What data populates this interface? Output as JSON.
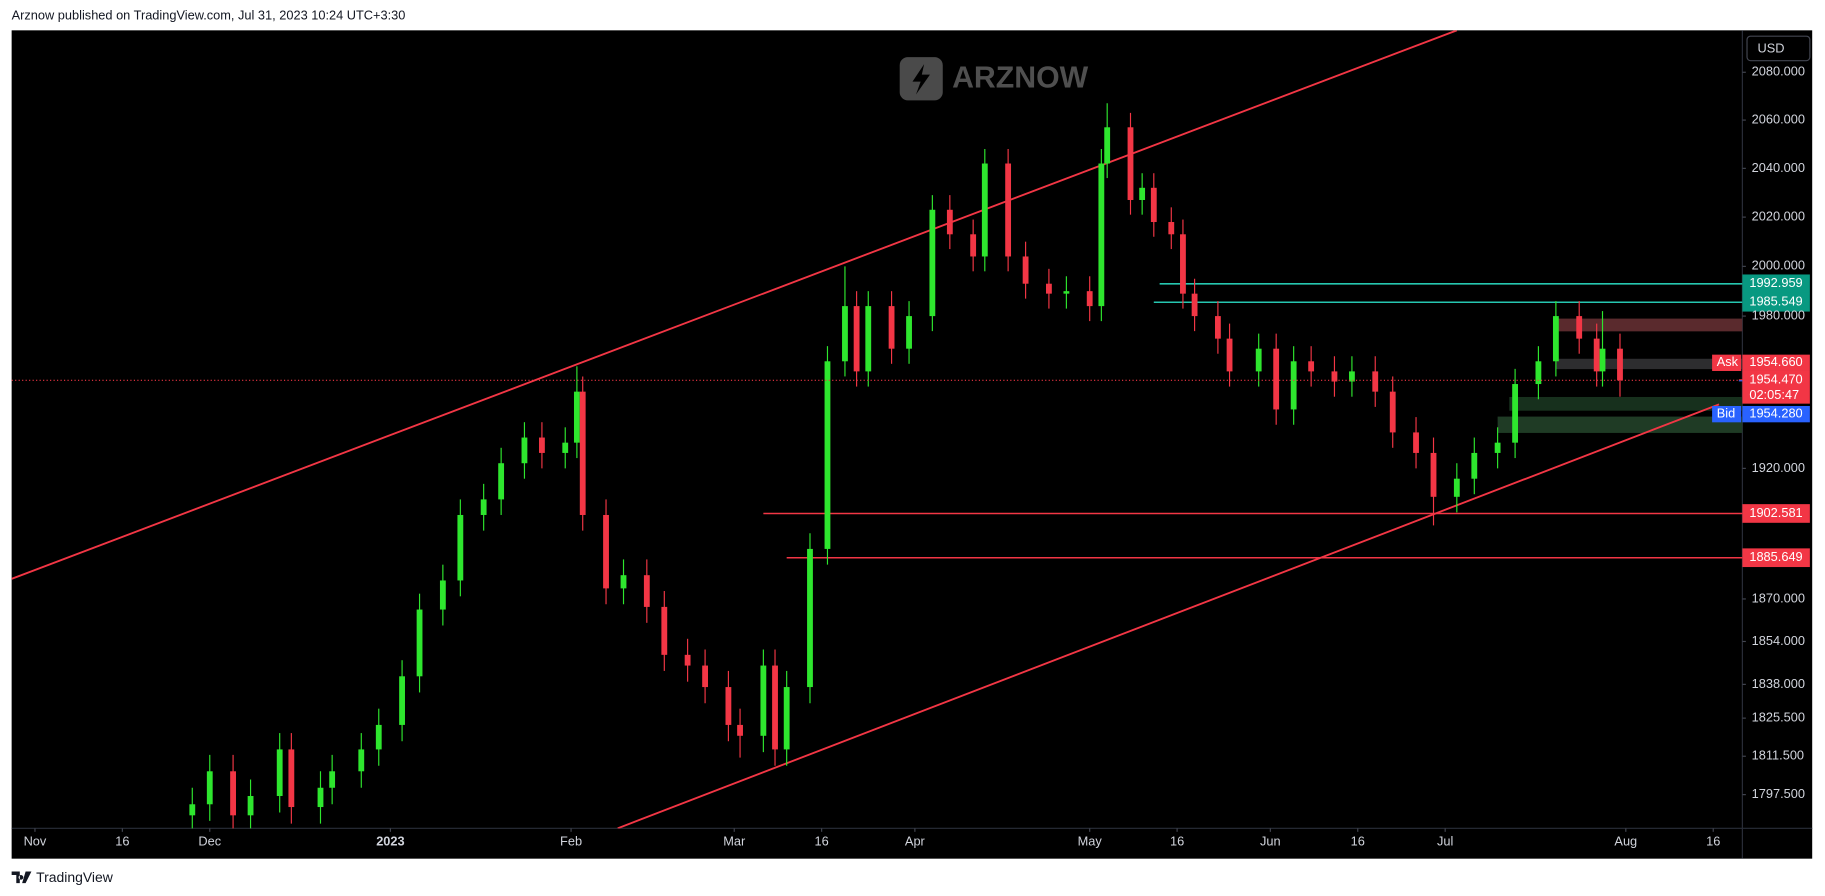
{
  "header": "Arznow published on TradingView.com, Jul 31, 2023 10:24 UTC+3:30",
  "footer": "TradingView",
  "watermark": "ARZNOW",
  "currency": "USD",
  "chart_data": {
    "type": "candlestick",
    "up_color": "#2ee62e",
    "down_color": "#f23645",
    "x": [
      "2022-11-28",
      "2022-12-01",
      "2022-12-05",
      "2022-12-08",
      "2022-12-13",
      "2022-12-15",
      "2022-12-20",
      "2022-12-22",
      "2022-12-27",
      "2022-12-30",
      "2023-01-03",
      "2023-01-06",
      "2023-01-10",
      "2023-01-13",
      "2023-01-17",
      "2023-01-20",
      "2023-01-24",
      "2023-01-27",
      "2023-01-31",
      "2023-02-02",
      "2023-02-03",
      "2023-02-07",
      "2023-02-10",
      "2023-02-14",
      "2023-02-17",
      "2023-02-21",
      "2023-02-24",
      "2023-02-28",
      "2023-03-02",
      "2023-03-06",
      "2023-03-08",
      "2023-03-10",
      "2023-03-14",
      "2023-03-17",
      "2023-03-20",
      "2023-03-22",
      "2023-03-24",
      "2023-03-28",
      "2023-03-31",
      "2023-04-04",
      "2023-04-07",
      "2023-04-11",
      "2023-04-13",
      "2023-04-17",
      "2023-04-20",
      "2023-04-24",
      "2023-04-27",
      "2023-05-01",
      "2023-05-03",
      "2023-05-04",
      "2023-05-08",
      "2023-05-10",
      "2023-05-12",
      "2023-05-15",
      "2023-05-17",
      "2023-05-19",
      "2023-05-23",
      "2023-05-25",
      "2023-05-30",
      "2023-06-02",
      "2023-06-05",
      "2023-06-08",
      "2023-06-12",
      "2023-06-15",
      "2023-06-19",
      "2023-06-22",
      "2023-06-26",
      "2023-06-29",
      "2023-07-03",
      "2023-07-06",
      "2023-07-10",
      "2023-07-13",
      "2023-07-17",
      "2023-07-20",
      "2023-07-24",
      "2023-07-27",
      "2023-07-28",
      "2023-07-31"
    ],
    "open": [
      1790,
      1794,
      1806,
      1790,
      1797,
      1814,
      1793,
      1800,
      1806,
      1814,
      1823,
      1841,
      1866,
      1877,
      1902,
      1908,
      1922,
      1932,
      1926,
      1930,
      1950,
      1902,
      1874,
      1879,
      1867,
      1849,
      1845,
      1837,
      1823,
      1819,
      1845,
      1814,
      1837,
      1889,
      1962,
      1984,
      1958,
      1984,
      1967,
      1980,
      2023,
      2013,
      2004,
      2042,
      2004,
      1993,
      1989,
      1990,
      1984,
      2042,
      2057,
      2027,
      2032,
      2018,
      2013,
      1989,
      1980,
      1971,
      1958,
      1967,
      1943,
      1962,
      1958,
      1954,
      1958,
      1950,
      1934,
      1926,
      1909,
      1916,
      1926,
      1930,
      1953,
      1962,
      1980,
      1971,
      1958,
      1967
    ],
    "high": [
      1800,
      1812,
      1812,
      1803,
      1820,
      1820,
      1806,
      1812,
      1820,
      1829,
      1847,
      1872,
      1883,
      1908,
      1914,
      1928,
      1938,
      1938,
      1936,
      1960,
      1956,
      1908,
      1885,
      1885,
      1873,
      1855,
      1851,
      1843,
      1829,
      1851,
      1851,
      1843,
      1895,
      1968,
      2000,
      1990,
      1990,
      1990,
      1986,
      2029,
      2029,
      2019,
      2048,
      2048,
      2010,
      1999,
      1996,
      1996,
      2048,
      2067,
      2063,
      2038,
      2038,
      2024,
      2019,
      1995,
      1986,
      1977,
      1973,
      1973,
      1968,
      1968,
      1964,
      1964,
      1964,
      1956,
      1940,
      1932,
      1922,
      1932,
      1936,
      1959,
      1968,
      1986,
      1986,
      1977,
      1982,
      1973
    ],
    "low": [
      1784,
      1788,
      1784,
      1784,
      1791,
      1787,
      1787,
      1794,
      1800,
      1808,
      1817,
      1835,
      1860,
      1871,
      1896,
      1902,
      1916,
      1920,
      1920,
      1924,
      1896,
      1868,
      1868,
      1861,
      1843,
      1839,
      1831,
      1817,
      1811,
      1813,
      1808,
      1808,
      1831,
      1883,
      1956,
      1952,
      1952,
      1961,
      1961,
      1974,
      2007,
      1998,
      1998,
      1998,
      1987,
      1983,
      1983,
      1978,
      1978,
      2036,
      2021,
      2021,
      2012,
      2007,
      1983,
      1974,
      1965,
      1952,
      1952,
      1937,
      1937,
      1952,
      1948,
      1948,
      1944,
      1928,
      1920,
      1898,
      1903,
      1910,
      1920,
      1924,
      1947,
      1956,
      1965,
      1952,
      1952,
      1948
    ],
    "close": [
      1794,
      1806,
      1790,
      1797,
      1814,
      1793,
      1800,
      1806,
      1814,
      1823,
      1841,
      1866,
      1877,
      1902,
      1908,
      1922,
      1932,
      1926,
      1930,
      1950,
      1902,
      1874,
      1879,
      1867,
      1849,
      1845,
      1837,
      1823,
      1819,
      1845,
      1814,
      1837,
      1889,
      1962,
      1984,
      1958,
      1984,
      1967,
      1980,
      2023,
      2013,
      2004,
      2042,
      2004,
      1993,
      1989,
      1990,
      1984,
      2042,
      2057,
      2027,
      2032,
      2018,
      2013,
      1989,
      1980,
      1971,
      1958,
      1967,
      1943,
      1962,
      1958,
      1954,
      1958,
      1950,
      1934,
      1926,
      1909,
      1916,
      1926,
      1930,
      1953,
      1962,
      1980,
      1971,
      1958,
      1967,
      1954.47
    ],
    "xlim": [
      "2022-10-28",
      "2023-08-21"
    ],
    "xticks": [
      {
        "value": "2022-11-01",
        "label": "Nov"
      },
      {
        "value": "2022-11-16",
        "label": "16"
      },
      {
        "value": "2022-12-01",
        "label": "Dec"
      },
      {
        "value": "2023-01-01",
        "label": "2023"
      },
      {
        "value": "2023-02-01",
        "label": "Feb"
      },
      {
        "value": "2023-03-01",
        "label": "Mar"
      },
      {
        "value": "2023-03-16",
        "label": "16"
      },
      {
        "value": "2023-04-01",
        "label": "Apr"
      },
      {
        "value": "2023-05-01",
        "label": "May"
      },
      {
        "value": "2023-05-16",
        "label": "16"
      },
      {
        "value": "2023-06-01",
        "label": "Jun"
      },
      {
        "value": "2023-06-16",
        "label": "16"
      },
      {
        "value": "2023-07-01",
        "label": "Jul"
      },
      {
        "value": "2023-08-01",
        "label": "Aug"
      },
      {
        "value": "2023-08-16",
        "label": "16"
      }
    ],
    "ylim": [
      1785.3,
      2097.7
    ],
    "log_scale": true,
    "grid": false,
    "yticks": [
      {
        "value": 2080,
        "label": "2080.000"
      },
      {
        "value": 2060,
        "label": "2060.000"
      },
      {
        "value": 2040,
        "label": "2040.000"
      },
      {
        "value": 2020,
        "label": "2020.000"
      },
      {
        "value": 2000,
        "label": "2000.000"
      },
      {
        "value": 1980,
        "label": "1980.000"
      },
      {
        "value": 1920,
        "label": "1920.000"
      },
      {
        "value": 1870,
        "label": "1870.000"
      },
      {
        "value": 1854,
        "label": "1854.000"
      },
      {
        "value": 1838,
        "label": "1838.000"
      },
      {
        "value": 1825.5,
        "label": "1825.500"
      },
      {
        "value": 1811.5,
        "label": "1811.500"
      },
      {
        "value": 1797.5,
        "label": "1797.500"
      }
    ],
    "levels": [
      {
        "value": 1992.959,
        "start": "2023-05-13",
        "color": "#089981",
        "line_color": "#26c6b0"
      },
      {
        "value": 1985.549,
        "start": "2023-05-12",
        "color": "#089981",
        "line_color": "#26c6b0"
      },
      {
        "value": 1902.581,
        "start": "2023-03-06",
        "color": "#f23645",
        "line_color": "#f23645"
      },
      {
        "value": 1885.649,
        "start": "2023-03-10",
        "color": "#f23645",
        "line_color": "#f23645"
      }
    ],
    "trendlines": [
      {
        "color": "#f23645",
        "x": [
          "2022-10-28",
          "2023-07-03"
        ],
        "y": [
          1877.6,
          2097.7
        ]
      },
      {
        "color": "#f23645",
        "x": [
          "2023-02-09",
          "2023-08-17"
        ],
        "y": [
          1785.3,
          1945
        ]
      }
    ],
    "zones": [
      {
        "start": "2023-07-20",
        "top": 1979.0,
        "bottom": 1973.9,
        "color": "#5a2a2d"
      },
      {
        "start": "2023-07-20",
        "top": 1963.0,
        "bottom": 1958.9,
        "color": "#2d2d2f"
      },
      {
        "start": "2023-07-12",
        "top": 1947.9,
        "bottom": 1942.5,
        "color": "#17301d"
      },
      {
        "start": "2023-07-10",
        "top": 1940.2,
        "bottom": 1933.8,
        "color": "#1f3b25"
      }
    ],
    "last": {
      "value": 1954.47,
      "label": "1954.470",
      "countdown": "02:05:47",
      "color": "#f23645"
    },
    "ask": {
      "name": "Ask",
      "value": 1954.66,
      "label": "1954.660",
      "color": "#f23645"
    },
    "bid": {
      "name": "Bid",
      "value": 1954.28,
      "label": "1954.280",
      "color": "#2962ff"
    }
  }
}
